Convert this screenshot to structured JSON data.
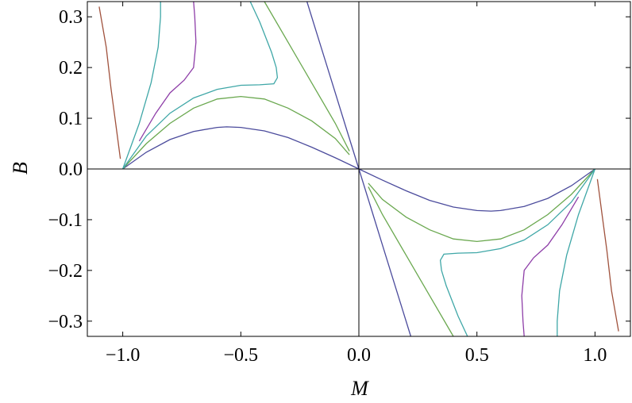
{
  "chart_data": {
    "type": "line",
    "title": "",
    "xlabel": "M",
    "ylabel": "B",
    "xlim": [
      -1.15,
      1.15
    ],
    "ylim": [
      -0.33,
      0.33
    ],
    "grid": false,
    "xticks": [
      {
        "value": -1.0,
        "label": "−1.0"
      },
      {
        "value": -0.5,
        "label": "−0.5"
      },
      {
        "value": 0.0,
        "label": "0.0"
      },
      {
        "value": 0.5,
        "label": "0.5"
      },
      {
        "value": 1.0,
        "label": "1.0"
      }
    ],
    "yticks": [
      {
        "value": 0.3,
        "label": "0.3"
      },
      {
        "value": 0.2,
        "label": "0.2"
      },
      {
        "value": 0.1,
        "label": "0.1"
      },
      {
        "value": 0.0,
        "label": "0.0"
      },
      {
        "value": -0.1,
        "label": "−0.1"
      },
      {
        "value": -0.2,
        "label": "−0.2"
      },
      {
        "value": -0.3,
        "label": "−0.3"
      }
    ],
    "series": [
      {
        "color": "#4b4b9c",
        "segments": [
          [
            [
              -1.0,
              0.0
            ],
            [
              -0.9,
              0.033
            ],
            [
              -0.8,
              0.058
            ],
            [
              -0.7,
              0.074
            ],
            [
              -0.6,
              0.082
            ],
            [
              -0.56,
              0.083
            ],
            [
              -0.5,
              0.082
            ],
            [
              -0.4,
              0.075
            ],
            [
              -0.3,
              0.062
            ],
            [
              -0.2,
              0.043
            ],
            [
              -0.1,
              0.022
            ],
            [
              0.0,
              0.0
            ]
          ],
          [
            [
              0.0,
              0.0
            ],
            [
              0.1,
              -0.022
            ],
            [
              0.2,
              -0.043
            ],
            [
              0.3,
              -0.062
            ],
            [
              0.4,
              -0.075
            ],
            [
              0.5,
              -0.082
            ],
            [
              0.56,
              -0.083
            ],
            [
              0.6,
              -0.082
            ],
            [
              0.7,
              -0.074
            ],
            [
              0.8,
              -0.058
            ],
            [
              0.9,
              -0.033
            ],
            [
              1.0,
              0.0
            ]
          ],
          [
            [
              -0.22,
              0.33
            ],
            [
              -0.18,
              0.27
            ],
            [
              -0.14,
              0.21
            ],
            [
              -0.1,
              0.15
            ],
            [
              -0.05,
              0.075
            ],
            [
              0.0,
              0.0
            ],
            [
              0.05,
              -0.075
            ],
            [
              0.1,
              -0.15
            ],
            [
              0.14,
              -0.21
            ],
            [
              0.18,
              -0.27
            ],
            [
              0.22,
              -0.33
            ]
          ]
        ]
      },
      {
        "color": "#6aa84f",
        "segments": [
          [
            [
              -1.0,
              0.0
            ],
            [
              -0.9,
              0.05
            ],
            [
              -0.8,
              0.09
            ],
            [
              -0.7,
              0.12
            ],
            [
              -0.6,
              0.138
            ],
            [
              -0.5,
              0.143
            ],
            [
              -0.4,
              0.138
            ],
            [
              -0.3,
              0.12
            ],
            [
              -0.2,
              0.095
            ],
            [
              -0.1,
              0.06
            ],
            [
              -0.04,
              0.028
            ]
          ],
          [
            [
              0.04,
              -0.028
            ],
            [
              0.1,
              -0.06
            ],
            [
              0.2,
              -0.095
            ],
            [
              0.3,
              -0.12
            ],
            [
              0.4,
              -0.138
            ],
            [
              0.5,
              -0.143
            ],
            [
              0.6,
              -0.138
            ],
            [
              0.7,
              -0.12
            ],
            [
              0.8,
              -0.09
            ],
            [
              0.9,
              -0.05
            ],
            [
              1.0,
              0.0
            ]
          ],
          [
            [
              -0.4,
              0.33
            ],
            [
              -0.3,
              0.25
            ],
            [
              -0.2,
              0.17
            ],
            [
              -0.1,
              0.09
            ],
            [
              -0.04,
              0.035
            ]
          ],
          [
            [
              0.04,
              -0.035
            ],
            [
              0.1,
              -0.09
            ],
            [
              0.2,
              -0.17
            ],
            [
              0.3,
              -0.25
            ],
            [
              0.4,
              -0.33
            ]
          ]
        ]
      },
      {
        "color": "#3fa7a7",
        "segments": [
          [
            [
              -1.0,
              0.0
            ],
            [
              -0.9,
              0.065
            ],
            [
              -0.8,
              0.11
            ],
            [
              -0.7,
              0.14
            ],
            [
              -0.6,
              0.157
            ],
            [
              -0.5,
              0.165
            ],
            [
              -0.42,
              0.166
            ],
            [
              -0.36,
              0.168
            ],
            [
              -0.345,
              0.18
            ],
            [
              -0.35,
              0.2
            ],
            [
              -0.37,
              0.23
            ],
            [
              -0.42,
              0.29
            ],
            [
              -0.46,
              0.33
            ]
          ],
          [
            [
              1.0,
              0.0
            ],
            [
              0.9,
              -0.065
            ],
            [
              0.8,
              -0.11
            ],
            [
              0.7,
              -0.14
            ],
            [
              0.6,
              -0.157
            ],
            [
              0.5,
              -0.165
            ],
            [
              0.42,
              -0.166
            ],
            [
              0.36,
              -0.168
            ],
            [
              0.345,
              -0.18
            ],
            [
              0.35,
              -0.2
            ],
            [
              0.37,
              -0.23
            ],
            [
              0.42,
              -0.29
            ],
            [
              0.46,
              -0.33
            ]
          ],
          [
            [
              -1.0,
              0.0
            ],
            [
              -0.93,
              0.09
            ],
            [
              -0.88,
              0.17
            ],
            [
              -0.85,
              0.24
            ],
            [
              -0.84,
              0.3
            ],
            [
              -0.84,
              0.33
            ]
          ],
          [
            [
              1.0,
              0.0
            ],
            [
              0.93,
              -0.09
            ],
            [
              0.88,
              -0.17
            ],
            [
              0.85,
              -0.24
            ],
            [
              0.84,
              -0.3
            ],
            [
              0.84,
              -0.33
            ]
          ]
        ]
      },
      {
        "color": "#8e3ea8",
        "segments": [
          [
            [
              -0.93,
              0.055
            ],
            [
              -0.86,
              0.11
            ],
            [
              -0.8,
              0.15
            ],
            [
              -0.74,
              0.175
            ],
            [
              -0.7,
              0.2
            ],
            [
              -0.69,
              0.25
            ],
            [
              -0.695,
              0.3
            ],
            [
              -0.7,
              0.33
            ]
          ],
          [
            [
              0.93,
              -0.055
            ],
            [
              0.86,
              -0.11
            ],
            [
              0.8,
              -0.15
            ],
            [
              0.74,
              -0.175
            ],
            [
              0.7,
              -0.2
            ],
            [
              0.69,
              -0.25
            ],
            [
              0.695,
              -0.3
            ],
            [
              0.7,
              -0.33
            ]
          ]
        ]
      },
      {
        "color": "#a0523d",
        "segments": [
          [
            [
              -1.1,
              0.32
            ],
            [
              -1.07,
              0.24
            ],
            [
              -1.05,
              0.16
            ],
            [
              -1.03,
              0.09
            ],
            [
              -1.01,
              0.02
            ]
          ],
          [
            [
              1.1,
              -0.32
            ],
            [
              1.07,
              -0.24
            ],
            [
              1.05,
              -0.16
            ],
            [
              1.03,
              -0.09
            ],
            [
              1.01,
              -0.02
            ]
          ]
        ]
      }
    ]
  }
}
